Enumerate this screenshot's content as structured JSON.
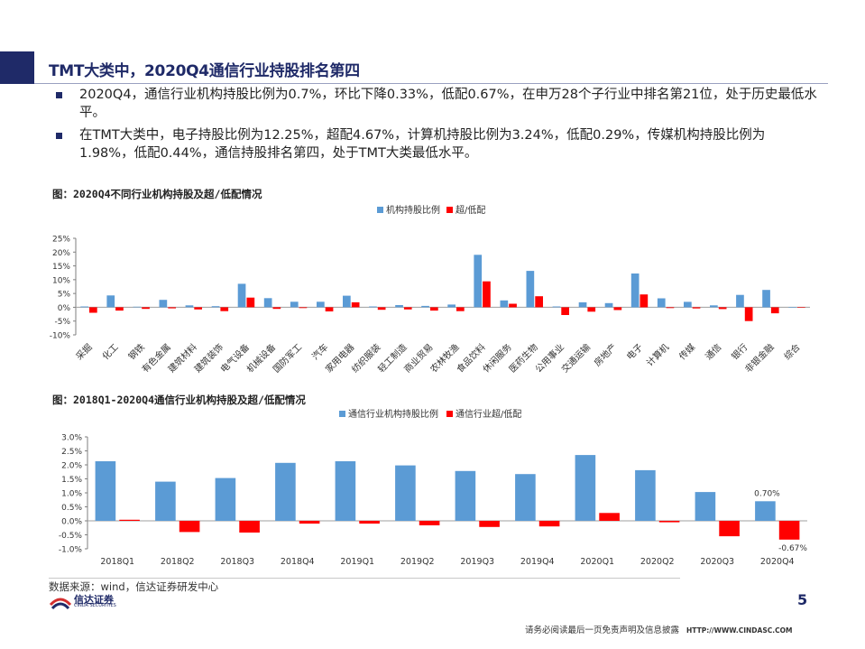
{
  "header": {
    "title": "TMT大类中，2020Q4通信行业持股排名第四"
  },
  "bullets": [
    "2020Q4，通信行业机构持股比例为0.7%，环比下降0.33%，低配0.67%，在申万28个子行业中排名第21位，处于历史最低水平。",
    "在TMT大类中，电子持股比例为12.25%，超配4.67%，计算机持股比例为3.24%，低配0.29%，传媒机构持股比例为1.98%，低配0.44%，通信持股排名第四，处于TMT大类最低水平。"
  ],
  "colors": {
    "accent": "#1f2a68",
    "holding": "#5b9bd5",
    "overweight": "#ff0000"
  },
  "chart_data": [
    {
      "type": "bar",
      "caption": "图：2020Q4不同行业机构持股及超/低配情况",
      "categories": [
        "采掘",
        "化工",
        "钢铁",
        "有色金属",
        "建筑材料",
        "建筑装饰",
        "电气设备",
        "机械设备",
        "国防军工",
        "汽车",
        "家用电器",
        "纺织服装",
        "轻工制造",
        "商业贸易",
        "农林牧渔",
        "食品饮料",
        "休闲服务",
        "医药生物",
        "公用事业",
        "交通运输",
        "房地产",
        "电子",
        "计算机",
        "传媒",
        "通信",
        "银行",
        "非银金融",
        "综合"
      ],
      "series": [
        {
          "name": "机构持股比例",
          "values": [
            0.3,
            4.3,
            0.2,
            2.7,
            0.7,
            0.4,
            8.5,
            3.3,
            2.0,
            2.0,
            4.2,
            0.3,
            0.8,
            0.5,
            1.0,
            19.0,
            2.5,
            13.2,
            0.3,
            1.8,
            1.5,
            12.25,
            3.24,
            1.98,
            0.7,
            4.5,
            6.3,
            0.1
          ]
        },
        {
          "name": "超/低配",
          "values": [
            -2.0,
            -1.2,
            -0.6,
            -0.4,
            -0.8,
            -1.4,
            3.5,
            -0.6,
            -0.3,
            -1.5,
            1.8,
            -0.9,
            -0.8,
            -1.2,
            -1.4,
            9.4,
            1.3,
            4.0,
            -2.8,
            -1.6,
            -1.0,
            4.67,
            -0.29,
            -0.44,
            -0.67,
            -5.0,
            -2.2,
            -0.2
          ]
        }
      ],
      "y_ticks": [
        "25%",
        "20%",
        "15%",
        "10%",
        "5%",
        "0%",
        "-5%",
        "-10%"
      ],
      "ylim": [
        -10,
        25
      ],
      "legend_position": "top",
      "grid": false
    },
    {
      "type": "bar",
      "caption": "图：2018Q1-2020Q4通信行业机构持股及超/低配情况",
      "categories": [
        "2018Q1",
        "2018Q2",
        "2018Q3",
        "2018Q4",
        "2019Q1",
        "2019Q2",
        "2019Q3",
        "2019Q4",
        "2020Q1",
        "2020Q2",
        "2020Q3",
        "2020Q4"
      ],
      "series": [
        {
          "name": "通信行业机构持股比例",
          "values": [
            2.13,
            1.4,
            1.53,
            2.07,
            2.13,
            1.98,
            1.78,
            1.67,
            2.35,
            1.81,
            1.03,
            0.7
          ]
        },
        {
          "name": "通信行业超/低配",
          "values": [
            0.04,
            -0.4,
            -0.42,
            -0.1,
            -0.1,
            -0.16,
            -0.22,
            -0.2,
            0.28,
            -0.05,
            -0.55,
            -0.67
          ]
        }
      ],
      "data_labels": [
        "0.70%",
        "-0.67%"
      ],
      "y_ticks": [
        "3.0%",
        "2.5%",
        "2.0%",
        "1.5%",
        "1.0%",
        "0.5%",
        "0.0%",
        "-0.5%",
        "-1.0%"
      ],
      "ylim": [
        -1.0,
        3.0
      ],
      "legend_position": "top",
      "grid": false
    }
  ],
  "footer": {
    "source": "数据来源：wind，信达证券研发中心",
    "logo_text": "信达证券",
    "logo_sub": "CINDA SECURITIES",
    "page_number": "5",
    "disclaimer": "请务必阅读最后一页免责声明及信息披露",
    "url": "HTTP://WWW.CINDASC.COM"
  }
}
